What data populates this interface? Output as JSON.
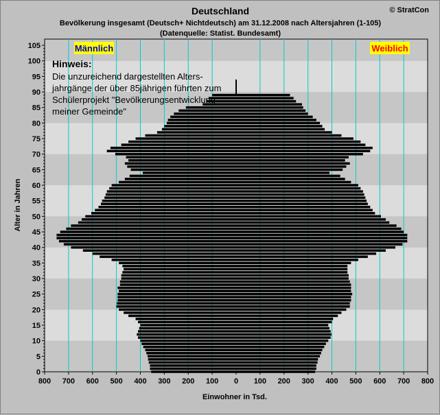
{
  "chart_data": {
    "type": "bar",
    "orientation": "horizontal-population-pyramid",
    "title": "Deutschland",
    "subtitle": "Bevölkerung  insgesamt (Deutsch+ Nichtdeutsch) am 31.12.2008 nach Altersjahren (1-105)",
    "source": "(Datenquelle: Statist. Bundesamt)",
    "copyright": "© StratCon",
    "xlabel": "Einwohner in Tsd.",
    "ylabel": "Alter in Jahren",
    "xlim": [
      -800,
      800
    ],
    "ylim": [
      0,
      107
    ],
    "x_ticks": [
      "800",
      "700",
      "600",
      "500",
      "400",
      "300",
      "200",
      "100",
      "0",
      "100",
      "200",
      "300",
      "400",
      "500",
      "600",
      "700",
      "800"
    ],
    "y_ticks": [
      "0",
      "5",
      "10",
      "15",
      "20",
      "25",
      "30",
      "35",
      "40",
      "45",
      "50",
      "55",
      "60",
      "65",
      "70",
      "75",
      "80",
      "85",
      "90",
      "95",
      "100",
      "105"
    ],
    "grid": true,
    "note": {
      "heading": "Hinweis:",
      "lines": [
        "Die unzureichend dargestellten Alters-",
        "jahrgänge der über 85jährigen führten zum",
        "Schülerprojekt \"Bevölkerungsentwicklung",
        "meiner Gemeinde\""
      ]
    },
    "colors": {
      "bar": "#000000",
      "gridline": "#00cccc",
      "legend_bg": "#ffff00",
      "male_text": "#0000cc",
      "female_text": "#ff0000",
      "band_dark": "#c6c6c6",
      "band_light": "#dcdcdc"
    },
    "series": [
      {
        "name": "Männlich",
        "values": [
          355,
          360,
          360,
          365,
          368,
          370,
          375,
          380,
          388,
          395,
          400,
          410,
          415,
          410,
          405,
          400,
          410,
          420,
          450,
          470,
          490,
          500,
          498,
          495,
          495,
          495,
          490,
          495,
          485,
          485,
          480,
          480,
          475,
          470,
          475,
          490,
          520,
          570,
          600,
          640,
          690,
          720,
          740,
          750,
          750,
          735,
          710,
          690,
          660,
          645,
          630,
          605,
          590,
          575,
          565,
          560,
          550,
          545,
          540,
          530,
          520,
          490,
          465,
          445,
          390,
          440,
          455,
          465,
          450,
          460,
          505,
          540,
          525,
          480,
          450,
          420,
          380,
          330,
          310,
          300,
          290,
          285,
          275,
          260,
          240,
          210,
          140,
          125,
          115,
          100,
          0,
          0,
          0,
          0,
          0,
          0,
          0,
          0,
          0,
          0,
          0,
          0,
          0,
          0,
          0,
          0
        ]
      },
      {
        "name": "Weiblich",
        "values": [
          330,
          335,
          335,
          340,
          342,
          350,
          355,
          360,
          368,
          375,
          385,
          395,
          398,
          395,
          390,
          385,
          400,
          405,
          425,
          440,
          460,
          475,
          475,
          480,
          480,
          485,
          480,
          480,
          480,
          475,
          470,
          470,
          465,
          465,
          465,
          480,
          510,
          550,
          585,
          625,
          665,
          695,
          715,
          715,
          715,
          700,
          690,
          670,
          640,
          625,
          605,
          580,
          570,
          560,
          550,
          545,
          540,
          535,
          530,
          520,
          510,
          480,
          455,
          435,
          390,
          445,
          460,
          475,
          455,
          470,
          530,
          560,
          570,
          540,
          520,
          490,
          440,
          400,
          370,
          360,
          350,
          335,
          320,
          300,
          290,
          280,
          275,
          250,
          240,
          225,
          0,
          0,
          0,
          0,
          0,
          0,
          0,
          0,
          0,
          0,
          0,
          0,
          0,
          0,
          0,
          0
        ]
      }
    ]
  }
}
